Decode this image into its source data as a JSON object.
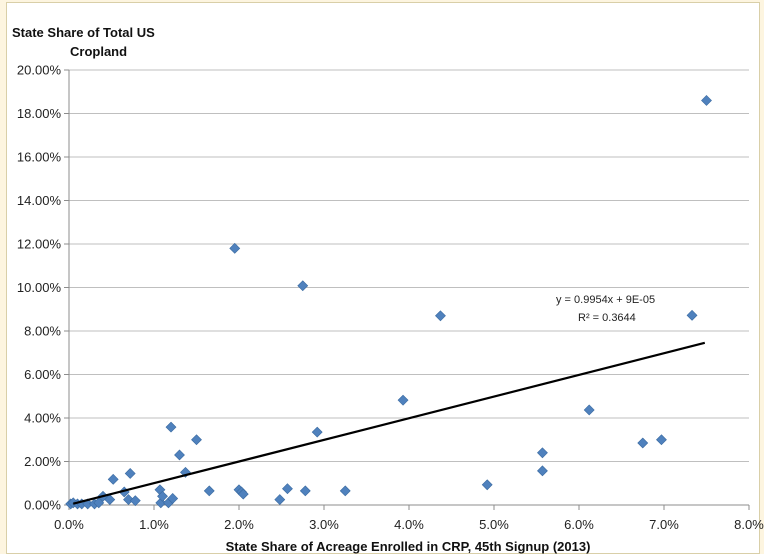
{
  "chart_data": {
    "type": "scatter",
    "title": "",
    "ylabel_lines": [
      "State Share of Total US",
      "Cropland"
    ],
    "xlabel": "State Share of Acreage Enrolled in CRP, 45th Signup (2013)",
    "xlim": [
      0,
      8
    ],
    "ylim": [
      0,
      20
    ],
    "x_ticks": [
      0,
      1,
      2,
      3,
      4,
      5,
      6,
      7,
      8
    ],
    "y_ticks": [
      0,
      2,
      4,
      6,
      8,
      10,
      12,
      14,
      16,
      18,
      20
    ],
    "x_tick_labels": [
      "0.0%",
      "1.0%",
      "2.0%",
      "3.0%",
      "4.0%",
      "5.0%",
      "6.0%",
      "7.0%",
      "8.0%"
    ],
    "y_tick_labels": [
      "0.00%",
      "2.00%",
      "4.00%",
      "6.00%",
      "8.00%",
      "10.00%",
      "12.00%",
      "14.00%",
      "16.00%",
      "18.00%",
      "20.00%"
    ],
    "grid": "horizontal",
    "marker_color": "#4f81bd",
    "trendline": {
      "color": "#000000",
      "x_start": 0.05,
      "x_end": 7.48,
      "slope": 0.9954,
      "intercept": 0.009,
      "equation": "y = 0.9954x + 9E-05",
      "r_squared": "R² = 0.3644"
    },
    "points": [
      {
        "x": 0.02,
        "y": 0.05
      },
      {
        "x": 0.05,
        "y": 0.1
      },
      {
        "x": 0.1,
        "y": 0.05
      },
      {
        "x": 0.15,
        "y": 0.05
      },
      {
        "x": 0.22,
        "y": 0.05
      },
      {
        "x": 0.3,
        "y": 0.05
      },
      {
        "x": 0.35,
        "y": 0.1
      },
      {
        "x": 0.4,
        "y": 0.4
      },
      {
        "x": 0.48,
        "y": 0.25
      },
      {
        "x": 0.52,
        "y": 1.18
      },
      {
        "x": 0.65,
        "y": 0.6
      },
      {
        "x": 0.7,
        "y": 0.25
      },
      {
        "x": 0.72,
        "y": 1.45
      },
      {
        "x": 0.78,
        "y": 0.2
      },
      {
        "x": 1.07,
        "y": 0.7
      },
      {
        "x": 1.08,
        "y": 0.1
      },
      {
        "x": 1.1,
        "y": 0.4
      },
      {
        "x": 1.17,
        "y": 0.1
      },
      {
        "x": 1.2,
        "y": 3.58
      },
      {
        "x": 1.22,
        "y": 0.3
      },
      {
        "x": 1.3,
        "y": 2.3
      },
      {
        "x": 1.37,
        "y": 1.5
      },
      {
        "x": 1.5,
        "y": 3.0
      },
      {
        "x": 1.65,
        "y": 0.65
      },
      {
        "x": 1.95,
        "y": 11.8
      },
      {
        "x": 2.0,
        "y": 0.7
      },
      {
        "x": 2.03,
        "y": 0.6
      },
      {
        "x": 2.05,
        "y": 0.5
      },
      {
        "x": 2.48,
        "y": 0.25
      },
      {
        "x": 2.57,
        "y": 0.75
      },
      {
        "x": 2.75,
        "y": 10.08
      },
      {
        "x": 2.78,
        "y": 0.65
      },
      {
        "x": 2.92,
        "y": 3.35
      },
      {
        "x": 3.25,
        "y": 0.65
      },
      {
        "x": 3.93,
        "y": 4.82
      },
      {
        "x": 4.37,
        "y": 8.7
      },
      {
        "x": 4.92,
        "y": 0.93
      },
      {
        "x": 5.57,
        "y": 2.4
      },
      {
        "x": 5.57,
        "y": 1.57
      },
      {
        "x": 6.12,
        "y": 4.37
      },
      {
        "x": 6.75,
        "y": 2.85
      },
      {
        "x": 6.97,
        "y": 3.0
      },
      {
        "x": 7.33,
        "y": 8.72
      },
      {
        "x": 7.5,
        "y": 18.6
      }
    ]
  }
}
